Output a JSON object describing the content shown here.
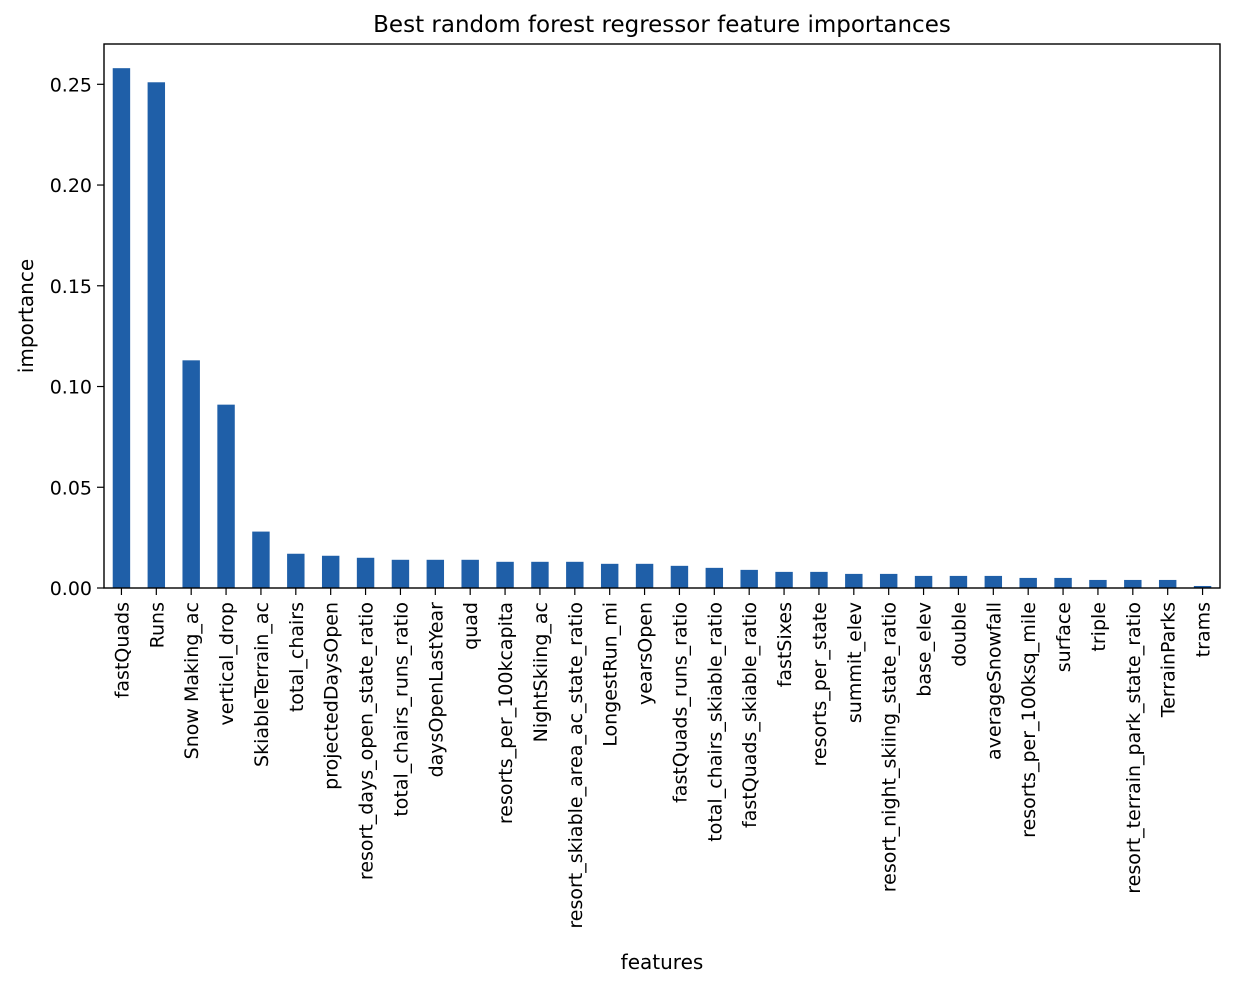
{
  "chart_data": {
    "type": "bar",
    "title": "Best random forest regressor feature importances",
    "xlabel": "features",
    "ylabel": "importance",
    "ylim": [
      0,
      0.27
    ],
    "y_ticks": [
      0.0,
      0.05,
      0.1,
      0.15,
      0.2,
      0.25
    ],
    "y_tick_labels": [
      "0.00",
      "0.05",
      "0.10",
      "0.15",
      "0.20",
      "0.25"
    ],
    "grid": false,
    "bar_color": "#1f5fa8",
    "categories": [
      "fastQuads",
      "Runs",
      "Snow Making_ac",
      "vertical_drop",
      "SkiableTerrain_ac",
      "total_chairs",
      "projectedDaysOpen",
      "resort_days_open_state_ratio",
      "total_chairs_runs_ratio",
      "daysOpenLastYear",
      "quad",
      "resorts_per_100kcapita",
      "NightSkiing_ac",
      "resort_skiable_area_ac_state_ratio",
      "LongestRun_mi",
      "yearsOpen",
      "fastQuads_runs_ratio",
      "total_chairs_skiable_ratio",
      "fastQuads_skiable_ratio",
      "fastSixes",
      "resorts_per_state",
      "summit_elev",
      "resort_night_skiing_state_ratio",
      "base_elev",
      "double",
      "averageSnowfall",
      "resorts_per_100ksq_mile",
      "surface",
      "triple",
      "resort_terrain_park_state_ratio",
      "TerrainParks",
      "trams"
    ],
    "values": [
      0.258,
      0.251,
      0.113,
      0.091,
      0.028,
      0.017,
      0.016,
      0.015,
      0.014,
      0.014,
      0.014,
      0.013,
      0.013,
      0.013,
      0.012,
      0.012,
      0.011,
      0.01,
      0.009,
      0.008,
      0.008,
      0.007,
      0.007,
      0.006,
      0.006,
      0.006,
      0.005,
      0.005,
      0.004,
      0.004,
      0.004,
      0.001
    ]
  }
}
